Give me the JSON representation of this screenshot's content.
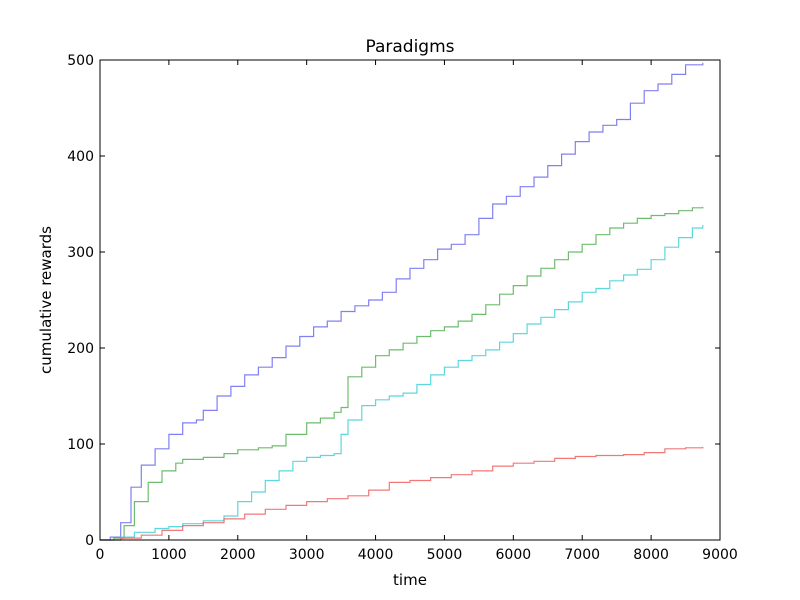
{
  "chart_data": {
    "type": "line",
    "title": "Paradigms",
    "xlabel": "time",
    "ylabel": "cumulative rewards",
    "xlim": [
      0,
      9000
    ],
    "ylim": [
      0,
      500
    ],
    "xticks": [
      0,
      1000,
      2000,
      3000,
      4000,
      5000,
      6000,
      7000,
      8000,
      9000
    ],
    "yticks": [
      0,
      100,
      200,
      300,
      400,
      500
    ],
    "grid": false,
    "legend": "none",
    "series": [
      {
        "color": "#6a6af0",
        "points": [
          [
            0,
            0
          ],
          [
            150,
            3
          ],
          [
            300,
            18
          ],
          [
            450,
            55
          ],
          [
            600,
            78
          ],
          [
            800,
            95
          ],
          [
            1000,
            110
          ],
          [
            1200,
            122
          ],
          [
            1400,
            125
          ],
          [
            1500,
            135
          ],
          [
            1700,
            150
          ],
          [
            1900,
            160
          ],
          [
            2100,
            172
          ],
          [
            2300,
            180
          ],
          [
            2500,
            190
          ],
          [
            2700,
            202
          ],
          [
            2900,
            212
          ],
          [
            3100,
            222
          ],
          [
            3300,
            228
          ],
          [
            3500,
            238
          ],
          [
            3700,
            244
          ],
          [
            3900,
            250
          ],
          [
            4100,
            258
          ],
          [
            4300,
            272
          ],
          [
            4500,
            283
          ],
          [
            4700,
            292
          ],
          [
            4900,
            303
          ],
          [
            5100,
            308
          ],
          [
            5300,
            318
          ],
          [
            5500,
            335
          ],
          [
            5700,
            350
          ],
          [
            5900,
            358
          ],
          [
            6100,
            368
          ],
          [
            6300,
            378
          ],
          [
            6500,
            390
          ],
          [
            6700,
            402
          ],
          [
            6900,
            415
          ],
          [
            7100,
            425
          ],
          [
            7300,
            432
          ],
          [
            7500,
            438
          ],
          [
            7700,
            455
          ],
          [
            7900,
            468
          ],
          [
            8100,
            475
          ],
          [
            8300,
            485
          ],
          [
            8500,
            495
          ],
          [
            8750,
            497
          ]
        ]
      },
      {
        "color": "#55b055",
        "points": [
          [
            0,
            0
          ],
          [
            200,
            2
          ],
          [
            350,
            15
          ],
          [
            500,
            40
          ],
          [
            700,
            60
          ],
          [
            900,
            72
          ],
          [
            1100,
            80
          ],
          [
            1200,
            84
          ],
          [
            1500,
            86
          ],
          [
            1800,
            90
          ],
          [
            2000,
            94
          ],
          [
            2300,
            96
          ],
          [
            2500,
            98
          ],
          [
            2700,
            110
          ],
          [
            3000,
            122
          ],
          [
            3200,
            127
          ],
          [
            3400,
            133
          ],
          [
            3500,
            138
          ],
          [
            3600,
            170
          ],
          [
            3800,
            180
          ],
          [
            4000,
            192
          ],
          [
            4200,
            198
          ],
          [
            4400,
            205
          ],
          [
            4600,
            212
          ],
          [
            4800,
            218
          ],
          [
            5000,
            222
          ],
          [
            5200,
            228
          ],
          [
            5400,
            235
          ],
          [
            5600,
            245
          ],
          [
            5800,
            256
          ],
          [
            6000,
            265
          ],
          [
            6200,
            275
          ],
          [
            6400,
            283
          ],
          [
            6600,
            292
          ],
          [
            6800,
            300
          ],
          [
            7000,
            308
          ],
          [
            7200,
            318
          ],
          [
            7400,
            325
          ],
          [
            7600,
            330
          ],
          [
            7800,
            335
          ],
          [
            8000,
            338
          ],
          [
            8200,
            340
          ],
          [
            8400,
            343
          ],
          [
            8600,
            346
          ],
          [
            8750,
            347
          ]
        ]
      },
      {
        "color": "#40d0d8",
        "points": [
          [
            0,
            0
          ],
          [
            300,
            3
          ],
          [
            500,
            8
          ],
          [
            800,
            12
          ],
          [
            1000,
            14
          ],
          [
            1200,
            17
          ],
          [
            1500,
            20
          ],
          [
            1800,
            25
          ],
          [
            2000,
            40
          ],
          [
            2200,
            50
          ],
          [
            2400,
            62
          ],
          [
            2600,
            72
          ],
          [
            2800,
            82
          ],
          [
            3000,
            86
          ],
          [
            3200,
            88
          ],
          [
            3400,
            90
          ],
          [
            3500,
            110
          ],
          [
            3600,
            125
          ],
          [
            3800,
            140
          ],
          [
            4000,
            146
          ],
          [
            4200,
            150
          ],
          [
            4400,
            153
          ],
          [
            4600,
            162
          ],
          [
            4800,
            172
          ],
          [
            5000,
            180
          ],
          [
            5200,
            187
          ],
          [
            5400,
            192
          ],
          [
            5600,
            198
          ],
          [
            5800,
            206
          ],
          [
            6000,
            215
          ],
          [
            6200,
            225
          ],
          [
            6400,
            232
          ],
          [
            6600,
            240
          ],
          [
            6800,
            248
          ],
          [
            7000,
            258
          ],
          [
            7200,
            262
          ],
          [
            7400,
            270
          ],
          [
            7600,
            276
          ],
          [
            7800,
            282
          ],
          [
            8000,
            292
          ],
          [
            8200,
            305
          ],
          [
            8400,
            315
          ],
          [
            8600,
            325
          ],
          [
            8750,
            328
          ]
        ]
      },
      {
        "color": "#f06060",
        "points": [
          [
            0,
            0
          ],
          [
            300,
            2
          ],
          [
            600,
            5
          ],
          [
            900,
            10
          ],
          [
            1200,
            15
          ],
          [
            1500,
            18
          ],
          [
            1800,
            22
          ],
          [
            2100,
            27
          ],
          [
            2400,
            32
          ],
          [
            2700,
            36
          ],
          [
            3000,
            40
          ],
          [
            3300,
            43
          ],
          [
            3600,
            46
          ],
          [
            3900,
            52
          ],
          [
            4200,
            60
          ],
          [
            4500,
            62
          ],
          [
            4800,
            65
          ],
          [
            5100,
            68
          ],
          [
            5400,
            72
          ],
          [
            5700,
            77
          ],
          [
            6000,
            80
          ],
          [
            6300,
            82
          ],
          [
            6600,
            85
          ],
          [
            6900,
            87
          ],
          [
            7200,
            88
          ],
          [
            7600,
            89
          ],
          [
            7900,
            91
          ],
          [
            8200,
            95
          ],
          [
            8500,
            96
          ],
          [
            8750,
            97
          ]
        ]
      }
    ]
  }
}
